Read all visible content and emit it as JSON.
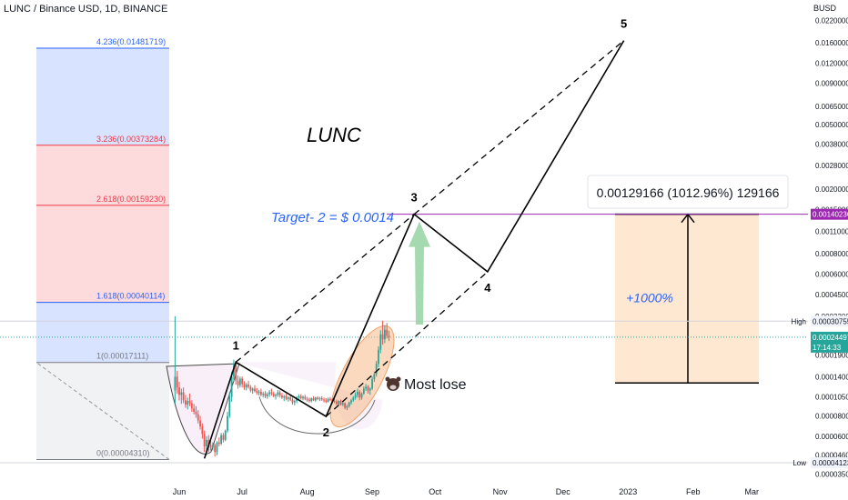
{
  "header": {
    "symbol": "LUNC / Binance USD, 1D, BINANCE",
    "currency": "BUSD"
  },
  "labels": {
    "title": "LUNC",
    "target": "Target- 2 = $ 0.0014",
    "most_lose": "Most lose",
    "gain_pct": "+1000%",
    "measure": "0.00129166 (1012.96%) 129166",
    "wave": [
      "1",
      "2",
      "3",
      "4",
      "5"
    ]
  },
  "colors": {
    "candle_up": "#26a69a",
    "candle_down": "#ef5350",
    "fib_blue": "#2962ff",
    "fib_red": "#f23645",
    "target_line": "#9c27b0",
    "current_price": "#26a69a",
    "range_box": "#ffe0c2",
    "ellipse": "#f6b98a",
    "arrow": "#8fd19e"
  },
  "price_badges": {
    "target": "0.00140236",
    "current": "0.00024497",
    "countdown": "17:14:33",
    "high_label": "High",
    "high": "0.00030755",
    "low_label": "Low",
    "low": "0.00004123"
  },
  "chart_data": {
    "type": "candlestick",
    "title": "LUNC",
    "yscale": "log",
    "ylim": [
      3.5e-05,
      0.025
    ],
    "x_ticks": [
      "Jun",
      "Jul",
      "Aug",
      "Sep",
      "Oct",
      "Nov",
      "Dec",
      "2023",
      "Feb",
      "Mar"
    ],
    "y_ticks": [
      "0.02200000",
      "0.01600000",
      "0.01200000",
      "0.00900000",
      "0.00650000",
      "0.00500000",
      "0.00380000",
      "0.00280000",
      "0.00200000",
      "0.00150000",
      "0.00110000",
      "0.00080000",
      "0.00060000",
      "0.00045000",
      "0.00033000",
      "0.00025000",
      "0.00019000",
      "0.00014000",
      "0.00010500",
      "0.00008000",
      "0.00006000",
      "0.00004600",
      "0.00003500"
    ],
    "fib_levels": [
      {
        "ratio": "4.236",
        "value": "0.01481719",
        "color": "#2962ff"
      },
      {
        "ratio": "3.236",
        "value": "0.00373284",
        "color": "#f23645"
      },
      {
        "ratio": "2.618",
        "value": "0.00159230",
        "color": "#f23645"
      },
      {
        "ratio": "1.618",
        "value": "0.00040114",
        "color": "#2962ff"
      },
      {
        "ratio": "1",
        "value": "0.00017111",
        "color": "#787b86"
      },
      {
        "ratio": "0",
        "value": "0.00004310",
        "color": "#787b86"
      }
    ],
    "elliott_waves": [
      {
        "label": "1",
        "date": "2022-06-28",
        "price": 0.000172
      },
      {
        "label": "2",
        "date": "2022-08-10",
        "price": 7.95e-05
      },
      {
        "label": "3",
        "date": "2022-09-21",
        "price": 0.00140236
      },
      {
        "label": "4",
        "date": "2022-10-26",
        "price": 0.00062
      },
      {
        "label": "5",
        "date": "2022-12-30",
        "price": 0.0165
      }
    ],
    "target_price": 0.00140236,
    "current_price": 0.00024497,
    "high": 0.00030755,
    "low": 4.123e-05,
    "measure": {
      "from_price": 0.000128,
      "to_price": 0.00140236,
      "label": "0.00129166 (1012.96%) 129166"
    },
    "candles": [
      {
        "d": "2022-05-30",
        "o": 0.000115,
        "h": 0.00033,
        "l": 9.5e-05,
        "c": 0.00014
      },
      {
        "d": "2022-05-31",
        "o": 0.00014,
        "h": 0.000152,
        "l": 0.00011,
        "c": 0.00012
      },
      {
        "d": "2022-06-01",
        "o": 0.00012,
        "h": 0.00013,
        "l": 0.0001,
        "c": 0.000108
      },
      {
        "d": "2022-06-02",
        "o": 0.000108,
        "h": 0.000118,
        "l": 9.5e-05,
        "c": 0.000112
      },
      {
        "d": "2022-06-03",
        "o": 0.000112,
        "h": 0.00012,
        "l": 9.6e-05,
        "c": 0.0001
      },
      {
        "d": "2022-06-04",
        "o": 0.0001,
        "h": 0.000108,
        "l": 9e-05,
        "c": 9.4e-05
      },
      {
        "d": "2022-06-05",
        "o": 9.4e-05,
        "h": 0.000104,
        "l": 8.8e-05,
        "c": 9.9e-05
      },
      {
        "d": "2022-06-06",
        "o": 9.9e-05,
        "h": 0.00011,
        "l": 9.2e-05,
        "c": 9.6e-05
      },
      {
        "d": "2022-06-07",
        "o": 9.6e-05,
        "h": 0.0001,
        "l": 8.5e-05,
        "c": 8.9e-05
      },
      {
        "d": "2022-06-08",
        "o": 8.9e-05,
        "h": 9.5e-05,
        "l": 8.2e-05,
        "c": 8.5e-05
      },
      {
        "d": "2022-06-09",
        "o": 8.5e-05,
        "h": 9.2e-05,
        "l": 7.8e-05,
        "c": 8.2e-05
      },
      {
        "d": "2022-06-10",
        "o": 8.2e-05,
        "h": 8.7e-05,
        "l": 7.2e-05,
        "c": 7.5e-05
      },
      {
        "d": "2022-06-11",
        "o": 7.5e-05,
        "h": 8e-05,
        "l": 6.6e-05,
        "c": 6.9e-05
      },
      {
        "d": "2022-06-12",
        "o": 6.9e-05,
        "h": 7.2e-05,
        "l": 5.8e-05,
        "c": 6.2e-05
      },
      {
        "d": "2022-06-13",
        "o": 6.2e-05,
        "h": 6.5e-05,
        "l": 4.8e-05,
        "c": 5.2e-05
      },
      {
        "d": "2022-06-14",
        "o": 5.2e-05,
        "h": 6e-05,
        "l": 4.6e-05,
        "c": 5.7e-05
      },
      {
        "d": "2022-06-15",
        "o": 5.7e-05,
        "h": 6.1e-05,
        "l": 4.8e-05,
        "c": 5.3e-05
      },
      {
        "d": "2022-06-16",
        "o": 5.3e-05,
        "h": 5.6e-05,
        "l": 4.9e-05,
        "c": 5.1e-05
      },
      {
        "d": "2022-06-17",
        "o": 5.1e-05,
        "h": 5.5e-05,
        "l": 4.9e-05,
        "c": 5.3e-05
      },
      {
        "d": "2022-06-18",
        "o": 5.3e-05,
        "h": 5.4e-05,
        "l": 4.5e-05,
        "c": 4.8e-05
      },
      {
        "d": "2022-06-19",
        "o": 4.8e-05,
        "h": 5.6e-05,
        "l": 4.6e-05,
        "c": 5.5e-05
      },
      {
        "d": "2022-06-20",
        "o": 5.5e-05,
        "h": 5.9e-05,
        "l": 5.2e-05,
        "c": 5.4e-05
      },
      {
        "d": "2022-06-21",
        "o": 5.4e-05,
        "h": 6.3e-05,
        "l": 5.3e-05,
        "c": 6.1e-05
      },
      {
        "d": "2022-06-22",
        "o": 6.1e-05,
        "h": 6.3e-05,
        "l": 5.5e-05,
        "c": 5.7e-05
      },
      {
        "d": "2022-06-23",
        "o": 5.7e-05,
        "h": 6.6e-05,
        "l": 5.6e-05,
        "c": 6.5e-05
      },
      {
        "d": "2022-06-24",
        "o": 6.5e-05,
        "h": 8.5e-05,
        "l": 6.3e-05,
        "c": 8e-05
      },
      {
        "d": "2022-06-25",
        "o": 8e-05,
        "h": 0.000112,
        "l": 7.8e-05,
        "c": 0.000105
      },
      {
        "d": "2022-06-26",
        "o": 0.000105,
        "h": 0.00015,
        "l": 9.8e-05,
        "c": 0.00014
      },
      {
        "d": "2022-06-27",
        "o": 0.00014,
        "h": 0.000178,
        "l": 0.00013,
        "c": 0.000165
      },
      {
        "d": "2022-06-28",
        "o": 0.000165,
        "h": 0.000172,
        "l": 0.000125,
        "c": 0.000132
      },
      {
        "d": "2022-06-29",
        "o": 0.000132,
        "h": 0.000142,
        "l": 0.000118,
        "c": 0.000124
      },
      {
        "d": "2022-06-30",
        "o": 0.000124,
        "h": 0.00014,
        "l": 0.00012,
        "c": 0.000136
      },
      {
        "d": "2022-07-01",
        "o": 0.000136,
        "h": 0.00014,
        "l": 0.00012,
        "c": 0.000126
      },
      {
        "d": "2022-07-02",
        "o": 0.000126,
        "h": 0.000131,
        "l": 0.000116,
        "c": 0.00012
      },
      {
        "d": "2022-07-03",
        "o": 0.00012,
        "h": 0.000128,
        "l": 0.000115,
        "c": 0.000125
      },
      {
        "d": "2022-07-04",
        "o": 0.000125,
        "h": 0.000132,
        "l": 0.000118,
        "c": 0.000121
      },
      {
        "d": "2022-07-05",
        "o": 0.000121,
        "h": 0.000124,
        "l": 0.000112,
        "c": 0.000115
      },
      {
        "d": "2022-07-06",
        "o": 0.000115,
        "h": 0.00012,
        "l": 0.00011,
        "c": 0.000118
      },
      {
        "d": "2022-07-07",
        "o": 0.000118,
        "h": 0.000124,
        "l": 0.000112,
        "c": 0.000114
      },
      {
        "d": "2022-07-08",
        "o": 0.000114,
        "h": 0.000119,
        "l": 0.000108,
        "c": 0.000111
      },
      {
        "d": "2022-07-09",
        "o": 0.000111,
        "h": 0.000116,
        "l": 0.000107,
        "c": 0.000113
      },
      {
        "d": "2022-07-10",
        "o": 0.000113,
        "h": 0.000118,
        "l": 0.000106,
        "c": 0.000108
      },
      {
        "d": "2022-07-11",
        "o": 0.000108,
        "h": 0.000113,
        "l": 0.000104,
        "c": 0.00011
      },
      {
        "d": "2022-07-12",
        "o": 0.00011,
        "h": 0.000114,
        "l": 0.000103,
        "c": 0.000106
      },
      {
        "d": "2022-07-13",
        "o": 0.000106,
        "h": 0.000112,
        "l": 0.000102,
        "c": 0.000109
      },
      {
        "d": "2022-07-14",
        "o": 0.000109,
        "h": 0.000116,
        "l": 0.000105,
        "c": 0.000112
      },
      {
        "d": "2022-07-15",
        "o": 0.000112,
        "h": 0.000118,
        "l": 0.000107,
        "c": 0.00011
      },
      {
        "d": "2022-07-16",
        "o": 0.00011,
        "h": 0.000113,
        "l": 0.000104,
        "c": 0.000106
      },
      {
        "d": "2022-07-17",
        "o": 0.000106,
        "h": 0.00011,
        "l": 0.000101,
        "c": 0.000108
      },
      {
        "d": "2022-07-18",
        "o": 0.000108,
        "h": 0.000116,
        "l": 0.000105,
        "c": 0.000112
      },
      {
        "d": "2022-07-19",
        "o": 0.000112,
        "h": 0.000115,
        "l": 0.000104,
        "c": 0.000107
      },
      {
        "d": "2022-07-20",
        "o": 0.000107,
        "h": 0.000111,
        "l": 0.000102,
        "c": 0.000104
      },
      {
        "d": "2022-07-21",
        "o": 0.000104,
        "h": 0.000108,
        "l": 9.9e-05,
        "c": 0.000106
      },
      {
        "d": "2022-07-22",
        "o": 0.000106,
        "h": 0.00011,
        "l": 0.0001,
        "c": 0.000102
      },
      {
        "d": "2022-07-23",
        "o": 0.000102,
        "h": 0.000106,
        "l": 9.8e-05,
        "c": 0.000104
      },
      {
        "d": "2022-07-24",
        "o": 0.000104,
        "h": 0.000107,
        "l": 9.9e-05,
        "c": 0.000101
      },
      {
        "d": "2022-07-25",
        "o": 0.000101,
        "h": 0.000104,
        "l": 9.4e-05,
        "c": 9.7e-05
      },
      {
        "d": "2022-07-26",
        "o": 9.7e-05,
        "h": 0.000101,
        "l": 9.3e-05,
        "c": 9.9e-05
      },
      {
        "d": "2022-07-27",
        "o": 9.9e-05,
        "h": 0.000106,
        "l": 9.6e-05,
        "c": 0.000104
      },
      {
        "d": "2022-07-28",
        "o": 0.000104,
        "h": 0.000109,
        "l": 0.0001,
        "c": 0.000106
      },
      {
        "d": "2022-07-29",
        "o": 0.000106,
        "h": 0.000109,
        "l": 0.000101,
        "c": 0.000103
      },
      {
        "d": "2022-07-30",
        "o": 0.000103,
        "h": 0.000107,
        "l": 0.0001,
        "c": 0.000105
      },
      {
        "d": "2022-07-31",
        "o": 0.000105,
        "h": 0.000108,
        "l": 0.0001,
        "c": 0.000102
      },
      {
        "d": "2022-08-01",
        "o": 0.000102,
        "h": 0.000105,
        "l": 9.8e-05,
        "c": 0.000101
      },
      {
        "d": "2022-08-02",
        "o": 0.000101,
        "h": 0.000104,
        "l": 9.7e-05,
        "c": 9.9e-05
      },
      {
        "d": "2022-08-03",
        "o": 9.9e-05,
        "h": 0.000104,
        "l": 9.7e-05,
        "c": 0.000103
      },
      {
        "d": "2022-08-04",
        "o": 0.000103,
        "h": 0.000106,
        "l": 9.9e-05,
        "c": 0.0001
      },
      {
        "d": "2022-08-05",
        "o": 0.0001,
        "h": 0.000105,
        "l": 9.8e-05,
        "c": 0.000104
      },
      {
        "d": "2022-08-06",
        "o": 0.000104,
        "h": 0.000106,
        "l": 0.0001,
        "c": 0.000102
      },
      {
        "d": "2022-08-07",
        "o": 0.000102,
        "h": 0.000105,
        "l": 9.9e-05,
        "c": 0.000103
      },
      {
        "d": "2022-08-08",
        "o": 0.000103,
        "h": 0.000106,
        "l": 9.9e-05,
        "c": 0.000101
      },
      {
        "d": "2022-08-09",
        "o": 0.000101,
        "h": 0.000104,
        "l": 9.7e-05,
        "c": 0.0001
      },
      {
        "d": "2022-08-10",
        "o": 0.0001,
        "h": 0.000103,
        "l": 9.6e-05,
        "c": 9.8e-05
      },
      {
        "d": "2022-08-11",
        "o": 9.8e-05,
        "h": 0.000104,
        "l": 9.7e-05,
        "c": 0.000102
      },
      {
        "d": "2022-08-12",
        "o": 0.000102,
        "h": 0.000105,
        "l": 9.9e-05,
        "c": 0.000101
      },
      {
        "d": "2022-08-13",
        "o": 0.000101,
        "h": 0.000103,
        "l": 9.7e-05,
        "c": 9.9e-05
      },
      {
        "d": "2022-08-14",
        "o": 9.9e-05,
        "h": 0.000102,
        "l": 9.6e-05,
        "c": 9.8e-05
      },
      {
        "d": "2022-08-15",
        "o": 9.8e-05,
        "h": 0.000101,
        "l": 9.3e-05,
        "c": 9.5e-05
      },
      {
        "d": "2022-08-16",
        "o": 9.5e-05,
        "h": 0.0001,
        "l": 9.4e-05,
        "c": 9.9e-05
      },
      {
        "d": "2022-08-17",
        "o": 9.9e-05,
        "h": 0.000101,
        "l": 9.3e-05,
        "c": 9.4e-05
      },
      {
        "d": "2022-08-18",
        "o": 9.4e-05,
        "h": 9.8e-05,
        "l": 9.2e-05,
        "c": 9.6e-05
      },
      {
        "d": "2022-08-19",
        "o": 9.6e-05,
        "h": 9.7e-05,
        "l": 8.8e-05,
        "c": 9e-05
      },
      {
        "d": "2022-08-20",
        "o": 9e-05,
        "h": 9.4e-05,
        "l": 8.7e-05,
        "c": 9.2e-05
      },
      {
        "d": "2022-08-21",
        "o": 9.2e-05,
        "h": 9.8e-05,
        "l": 9e-05,
        "c": 9.7e-05
      },
      {
        "d": "2022-08-22",
        "o": 9.7e-05,
        "h": 0.000102,
        "l": 9.4e-05,
        "c": 0.0001
      },
      {
        "d": "2022-08-23",
        "o": 0.0001,
        "h": 0.000106,
        "l": 9.8e-05,
        "c": 0.000104
      },
      {
        "d": "2022-08-24",
        "o": 0.000104,
        "h": 0.000112,
        "l": 0.000101,
        "c": 0.000108
      },
      {
        "d": "2022-08-25",
        "o": 0.000108,
        "h": 0.000118,
        "l": 0.000104,
        "c": 0.000113
      },
      {
        "d": "2022-08-26",
        "o": 0.000113,
        "h": 0.000116,
        "l": 0.0001,
        "c": 0.000104
      },
      {
        "d": "2022-08-27",
        "o": 0.000104,
        "h": 0.000112,
        "l": 0.000101,
        "c": 0.00011
      },
      {
        "d": "2022-08-28",
        "o": 0.00011,
        "h": 0.000122,
        "l": 0.000108,
        "c": 0.000118
      },
      {
        "d": "2022-08-29",
        "o": 0.000118,
        "h": 0.000126,
        "l": 0.000114,
        "c": 0.000121
      },
      {
        "d": "2022-08-30",
        "o": 0.000121,
        "h": 0.000124,
        "l": 0.00011,
        "c": 0.000115
      },
      {
        "d": "2022-08-31",
        "o": 0.000115,
        "h": 0.00012,
        "l": 0.000108,
        "c": 0.000118
      },
      {
        "d": "2022-09-01",
        "o": 0.000118,
        "h": 0.00014,
        "l": 0.000116,
        "c": 0.000135
      },
      {
        "d": "2022-09-02",
        "o": 0.000135,
        "h": 0.00015,
        "l": 0.00013,
        "c": 0.000145
      },
      {
        "d": "2022-09-03",
        "o": 0.000145,
        "h": 0.000175,
        "l": 0.00014,
        "c": 0.000168
      },
      {
        "d": "2022-09-04",
        "o": 0.000168,
        "h": 0.000215,
        "l": 0.00016,
        "c": 0.000205
      },
      {
        "d": "2022-09-05",
        "o": 0.000205,
        "h": 0.00027,
        "l": 0.000195,
        "c": 0.000255
      },
      {
        "d": "2022-09-06",
        "o": 0.000255,
        "h": 0.00031,
        "l": 0.00022,
        "c": 0.000238
      },
      {
        "d": "2022-09-07",
        "o": 0.000238,
        "h": 0.00029,
        "l": 0.000225,
        "c": 0.000272
      },
      {
        "d": "2022-09-08",
        "o": 0.000272,
        "h": 0.0003,
        "l": 0.00024,
        "c": 0.00025
      },
      {
        "d": "2022-09-09",
        "o": 0.00025,
        "h": 0.000268,
        "l": 0.000232,
        "c": 0.000245
      }
    ]
  }
}
